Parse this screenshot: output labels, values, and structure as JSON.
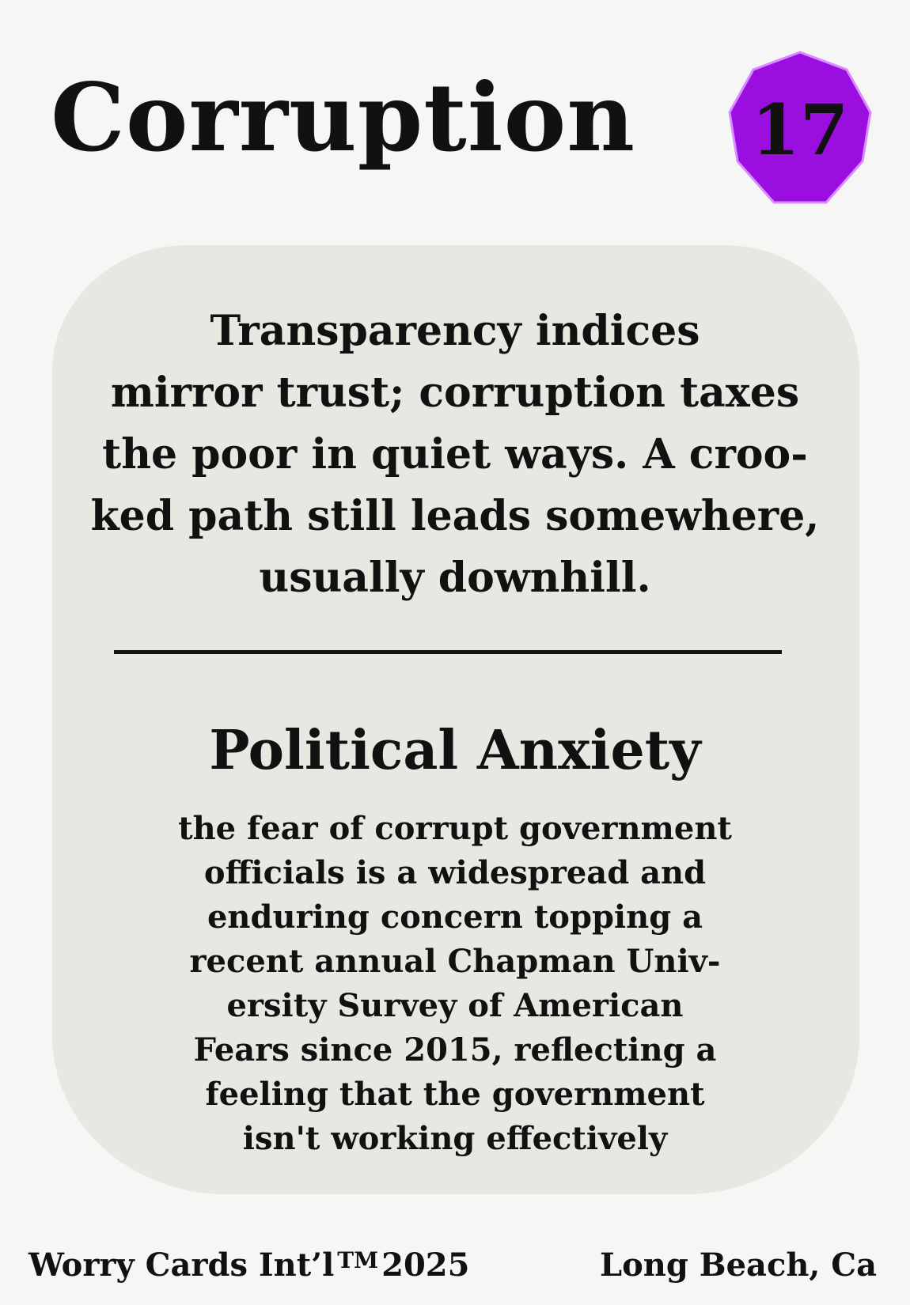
{
  "card": {
    "title": "Corruption",
    "number": "17",
    "badge_color": "#9b0ee0",
    "badge_border_color": "#d98cff",
    "panel_color": "#e6e8e1",
    "quote": "Transparency indices mirror trust; corruption taxes the poor in quiet ways. A crooked path still leads somewhere, usually downhill.",
    "quote_lines": [
      "Transparency indices",
      "mirror trust; corruption taxes",
      "the poor in quiet ways. A croo-",
      "ked path still leads somewhere,",
      "usually downhill."
    ],
    "subtitle": "Political Anxiety",
    "description_lines": [
      "the fear of corrupt government",
      "officials is a widespread and",
      "enduring concern topping a",
      "recent annual Chapman Univ-",
      "ersity Survey of American",
      "Fears since 2015, reflecting a",
      "feeling that the government",
      "isn't working effectively"
    ]
  },
  "footer": {
    "left_text": "Worry Cards Int’l",
    "trademark": "TM",
    "year": "2025",
    "right_text": "Long Beach, Ca"
  }
}
